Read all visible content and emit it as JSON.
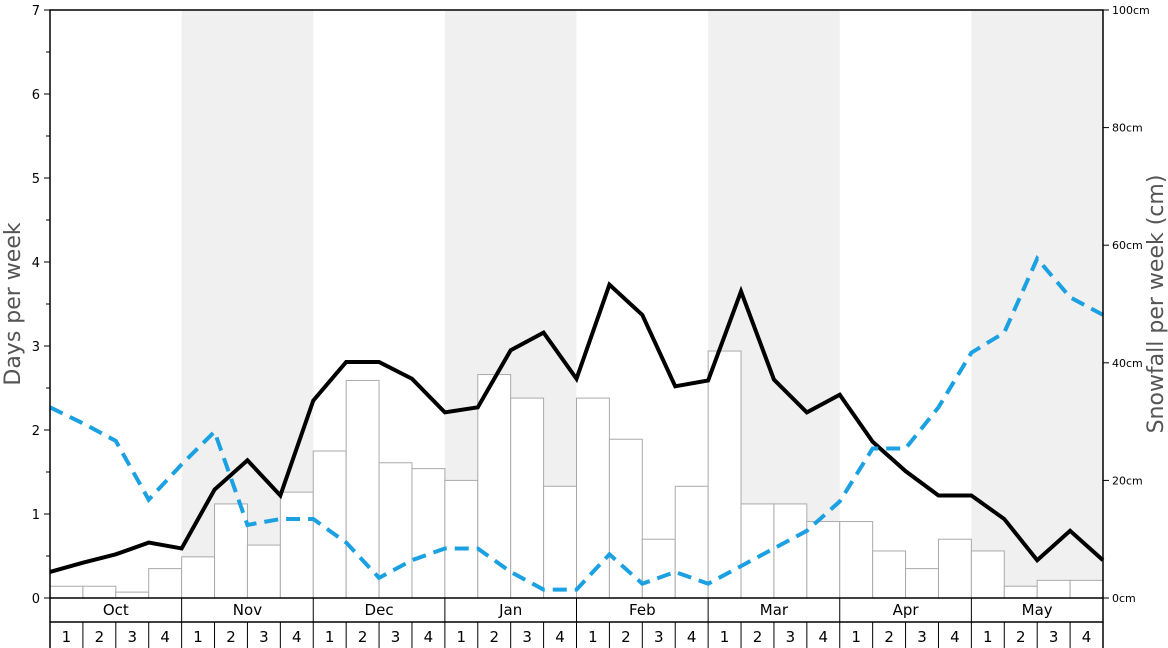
{
  "chart_data": {
    "type": "bar",
    "ylabel": "Days per week",
    "ylabel_right": "Snowfall per week (cm)",
    "ylim": [
      0,
      7
    ],
    "ylim_right": [
      0,
      100
    ],
    "yticks": [
      0,
      1,
      2,
      3,
      4,
      5,
      6,
      7
    ],
    "yticks_right": [
      "0cm",
      "20cm",
      "40cm",
      "60cm",
      "80cm",
      "100cm"
    ],
    "yticks_right_values": [
      0,
      20,
      40,
      60,
      80,
      100
    ],
    "months": [
      "Oct",
      "Nov",
      "Dec",
      "Jan",
      "Feb",
      "Mar",
      "Apr",
      "May"
    ],
    "weeks": [
      "1",
      "2",
      "3",
      "4"
    ],
    "shaded_months": [
      "Nov",
      "Jan",
      "Mar",
      "May"
    ],
    "grid": false,
    "series": [
      {
        "kind": "bar",
        "axis": "right",
        "values": [
          2,
          2,
          1,
          5,
          7,
          16,
          9,
          18,
          25,
          37,
          23,
          22,
          20,
          38,
          34,
          19,
          34,
          27,
          10,
          19,
          42,
          16,
          16,
          13,
          13,
          8,
          5,
          10,
          8,
          2,
          3,
          3
        ]
      },
      {
        "kind": "line",
        "axis": "left",
        "style": "solid",
        "color": "#000000",
        "values": [
          0.31,
          0.42,
          0.52,
          0.66,
          0.59,
          1.29,
          1.64,
          1.22,
          2.35,
          2.81,
          2.81,
          2.61,
          2.21,
          2.27,
          2.95,
          3.16,
          2.61,
          3.73,
          3.37,
          2.52,
          2.59,
          3.65,
          2.6,
          2.21,
          2.42,
          1.86,
          1.51,
          1.22,
          1.22,
          0.94,
          0.45,
          0.8,
          0.45
        ]
      },
      {
        "kind": "line",
        "axis": "left",
        "style": "dashed",
        "color": "#1ba1e2",
        "values": [
          2.27,
          2.08,
          1.87,
          1.17,
          1.59,
          1.98,
          0.87,
          0.94,
          0.94,
          0.66,
          0.24,
          0.45,
          0.59,
          0.59,
          0.31,
          0.1,
          0.1,
          0.52,
          0.17,
          0.31,
          0.17,
          0.38,
          0.59,
          0.8,
          1.15,
          1.78,
          1.78,
          2.27,
          2.92,
          3.16,
          4.04,
          3.58,
          3.37
        ]
      }
    ]
  }
}
